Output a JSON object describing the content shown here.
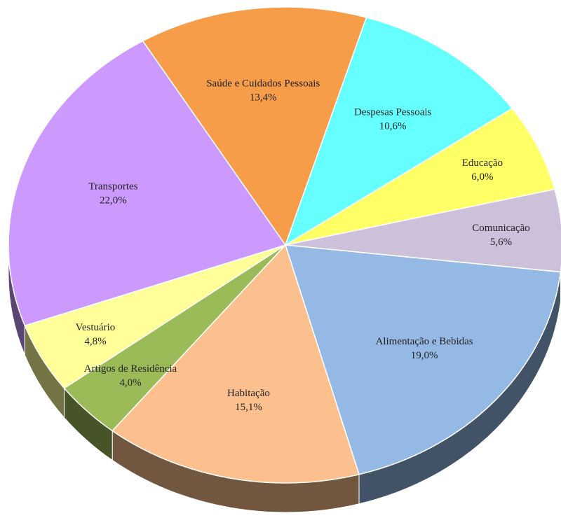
{
  "chart_data": {
    "type": "pie",
    "categories": [
      "Saúde e Cuidados Pessoais",
      "Despesas Pessoais",
      "Educação",
      "Comunicação",
      "Alimentação e Bebidas",
      "Habitação",
      "Artigos de Residência",
      "Vestuário",
      "Transportes"
    ],
    "values": [
      13.4,
      10.6,
      6.0,
      5.6,
      19.0,
      15.1,
      4.0,
      4.8,
      22.0
    ],
    "value_labels": [
      "13,4%",
      "10,6%",
      "6,0%",
      "5,6%",
      "19,0%",
      "15,1%",
      "4,0%",
      "4,8%",
      "22,0%"
    ],
    "colors": [
      "#f79d4a",
      "#66ffff",
      "#ffff66",
      "#ccc0da",
      "#95b9e5",
      "#fbc08e",
      "#9bbb59",
      "#ffff99",
      "#cc99ff"
    ]
  }
}
